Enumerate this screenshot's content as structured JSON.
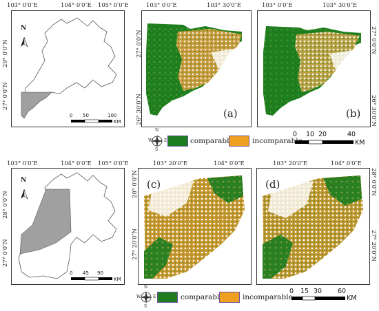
{
  "top_row": {
    "locator": {
      "top_ticks": [
        "103° 0′0″E",
        "104° 0′0″E",
        "105° 0′0″E"
      ],
      "left_ticks": [
        "29° 0′0″N",
        "27° 0′0″N"
      ],
      "north": "N",
      "scale_numbers": [
        "0",
        "50",
        "100"
      ],
      "scale_unit": "KM"
    },
    "panel_a": {
      "label": "(a)",
      "top_ticks": [
        "103° 0′0″E",
        "103° 30′0″E"
      ],
      "left_ticks": [
        "27° 0′0″N",
        "26° 30′0″N"
      ]
    },
    "panel_b": {
      "label": "(b)",
      "top_ticks": [
        "103° 0′0″E",
        "103° 30′0″E"
      ],
      "right_ticks": [
        "27° 0′0″N",
        "26° 30′0″N"
      ]
    },
    "legend": {
      "compass_letters": [
        "N",
        "W",
        "E",
        "S"
      ],
      "items": [
        {
          "label": "comparable",
          "color": "#1e7d1e"
        },
        {
          "label": "incomparable",
          "color": "#f0a020"
        }
      ],
      "scale_numbers": [
        "0",
        "10",
        "20",
        "40"
      ],
      "scale_unit": "KM"
    }
  },
  "bottom_row": {
    "locator": {
      "top_ticks": [
        "103° 0′0″E",
        "104° 0′0″E",
        "105° 0′0″E"
      ],
      "left_ticks": [
        "28° 0′0″N",
        "27° 0′0″N"
      ],
      "north": "N",
      "scale_numbers": [
        "0",
        "45",
        "90"
      ],
      "scale_unit": "KM"
    },
    "panel_c": {
      "label": "(c)",
      "top_ticks": [
        "103° 20′0″E",
        "104° 0′0″E"
      ],
      "left_ticks": [
        "28° 0′0″N",
        "27° 20′0″N"
      ]
    },
    "panel_d": {
      "label": "(d)",
      "top_ticks": [
        "103° 20′0″E",
        "104° 0′0″E"
      ],
      "right_ticks": [
        "28° 0′0″N",
        "27° 20′0″N"
      ]
    },
    "legend": {
      "compass_letters": [
        "N",
        "W",
        "E",
        "S"
      ],
      "items": [
        {
          "label": "comparable",
          "color": "#1e7d1e"
        },
        {
          "label": "incomparable",
          "color": "#f0a020"
        }
      ],
      "scale_numbers": [
        "0",
        "15",
        "30",
        "60"
      ],
      "scale_unit": "KM"
    }
  },
  "colors": {
    "forest": "#1e7d1e",
    "crop": "#f0a020",
    "study_area": "#a0a0a0",
    "outline": "#555555"
  }
}
